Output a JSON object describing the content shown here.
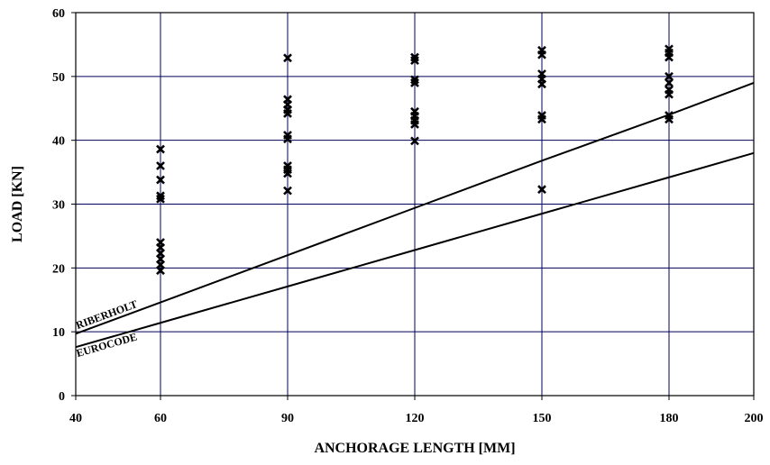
{
  "chart_data": {
    "type": "scatter",
    "xlabel": "ANCHORAGE LENGTH [MM]",
    "ylabel": "LOAD [KN]",
    "xlim": [
      40,
      200
    ],
    "ylim": [
      0,
      60
    ],
    "x_ticks": [
      40,
      60,
      90,
      120,
      150,
      180,
      200
    ],
    "y_ticks": [
      0,
      10,
      20,
      30,
      40,
      50,
      60
    ],
    "grid": true,
    "scatter_series": [
      {
        "marker": "x",
        "color": "#000000",
        "points": [
          {
            "x": 60,
            "y": 38.6
          },
          {
            "x": 60,
            "y": 36.0
          },
          {
            "x": 60,
            "y": 33.8
          },
          {
            "x": 60,
            "y": 31.3
          },
          {
            "x": 60,
            "y": 30.8
          },
          {
            "x": 60,
            "y": 24.0
          },
          {
            "x": 60,
            "y": 23.2
          },
          {
            "x": 60,
            "y": 22.3
          },
          {
            "x": 60,
            "y": 21.4
          },
          {
            "x": 60,
            "y": 20.5
          },
          {
            "x": 60,
            "y": 19.6
          },
          {
            "x": 90,
            "y": 52.9
          },
          {
            "x": 90,
            "y": 46.4
          },
          {
            "x": 90,
            "y": 45.6
          },
          {
            "x": 90,
            "y": 44.8
          },
          {
            "x": 90,
            "y": 44.2
          },
          {
            "x": 90,
            "y": 40.8
          },
          {
            "x": 90,
            "y": 40.2
          },
          {
            "x": 90,
            "y": 36.0
          },
          {
            "x": 90,
            "y": 35.4
          },
          {
            "x": 90,
            "y": 34.8
          },
          {
            "x": 90,
            "y": 32.1
          },
          {
            "x": 120,
            "y": 53.0
          },
          {
            "x": 120,
            "y": 52.5
          },
          {
            "x": 120,
            "y": 49.5
          },
          {
            "x": 120,
            "y": 49.0
          },
          {
            "x": 120,
            "y": 44.5
          },
          {
            "x": 120,
            "y": 43.8
          },
          {
            "x": 120,
            "y": 43.1
          },
          {
            "x": 120,
            "y": 42.5
          },
          {
            "x": 120,
            "y": 39.9
          },
          {
            "x": 150,
            "y": 54.1
          },
          {
            "x": 150,
            "y": 53.4
          },
          {
            "x": 150,
            "y": 50.4
          },
          {
            "x": 150,
            "y": 49.6
          },
          {
            "x": 150,
            "y": 48.8
          },
          {
            "x": 150,
            "y": 43.9
          },
          {
            "x": 150,
            "y": 43.3
          },
          {
            "x": 150,
            "y": 32.3
          },
          {
            "x": 180,
            "y": 54.3
          },
          {
            "x": 180,
            "y": 53.7
          },
          {
            "x": 180,
            "y": 53.0
          },
          {
            "x": 180,
            "y": 50.0
          },
          {
            "x": 180,
            "y": 49.0
          },
          {
            "x": 180,
            "y": 47.9
          },
          {
            "x": 180,
            "y": 47.2
          },
          {
            "x": 180,
            "y": 43.9
          },
          {
            "x": 180,
            "y": 43.3
          }
        ]
      }
    ],
    "line_series": [
      {
        "label": "RIBERHOLT",
        "x": [
          40,
          60,
          90,
          120,
          150,
          180,
          200
        ],
        "y": [
          9.7,
          14.6,
          22.0,
          29.4,
          36.8,
          44.0,
          49.0
        ]
      },
      {
        "label": "EUROCODE",
        "x": [
          40,
          60,
          90,
          120,
          150,
          180,
          200
        ],
        "y": [
          7.6,
          11.4,
          17.1,
          22.8,
          28.5,
          34.2,
          38.0
        ]
      }
    ]
  }
}
